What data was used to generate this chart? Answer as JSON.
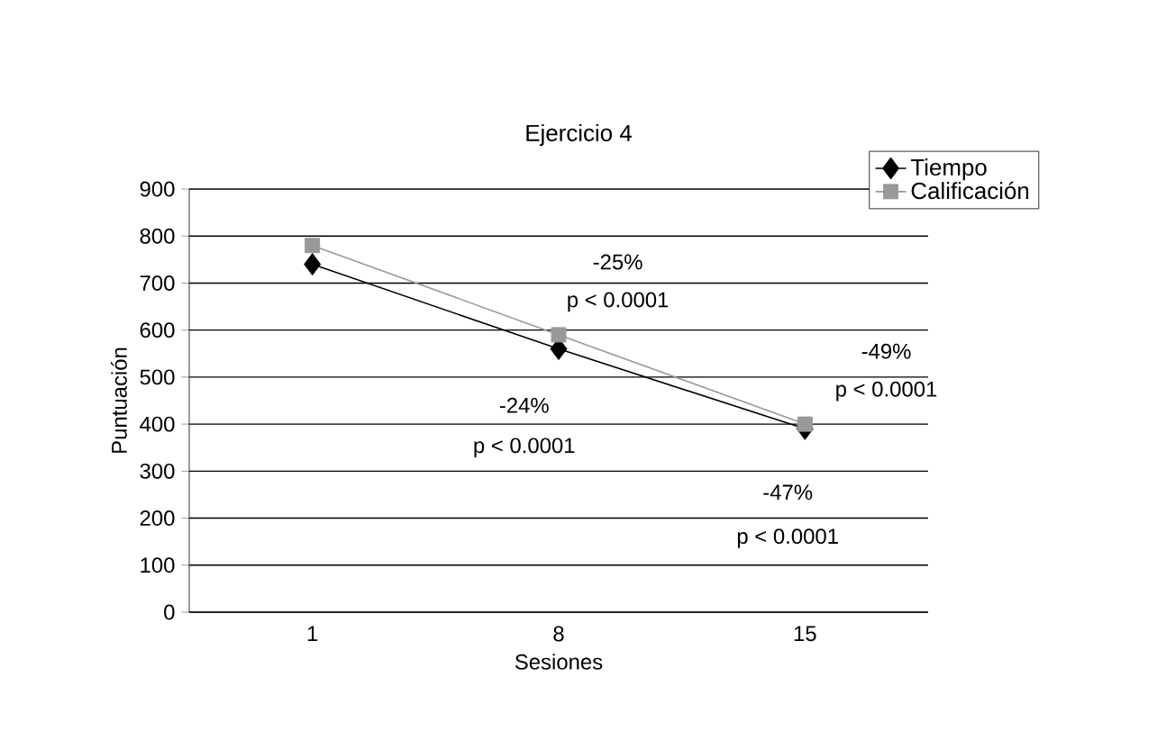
{
  "chart_data": {
    "type": "line",
    "title": "Ejercicio 4",
    "xlabel": "Sesiones",
    "ylabel": "Puntuación",
    "categories": [
      "1",
      "8",
      "15"
    ],
    "series": [
      {
        "name": "Tiempo",
        "color": "#000000",
        "marker": "diamond",
        "values": [
          740,
          560,
          390
        ]
      },
      {
        "name": "Calificación",
        "color": "#999999",
        "marker": "square",
        "values": [
          780,
          590,
          400
        ]
      }
    ],
    "ylim": [
      0,
      900
    ],
    "yticks": [
      0,
      100,
      200,
      300,
      400,
      500,
      600,
      700,
      800,
      900
    ],
    "grid": "y",
    "legend": "top right",
    "annotations": [
      "-25%",
      "p < 0.0001",
      "-49%",
      "p < 0.0001",
      "-24%",
      "p < 0.0001",
      "-47%",
      "p < 0.0001"
    ]
  }
}
